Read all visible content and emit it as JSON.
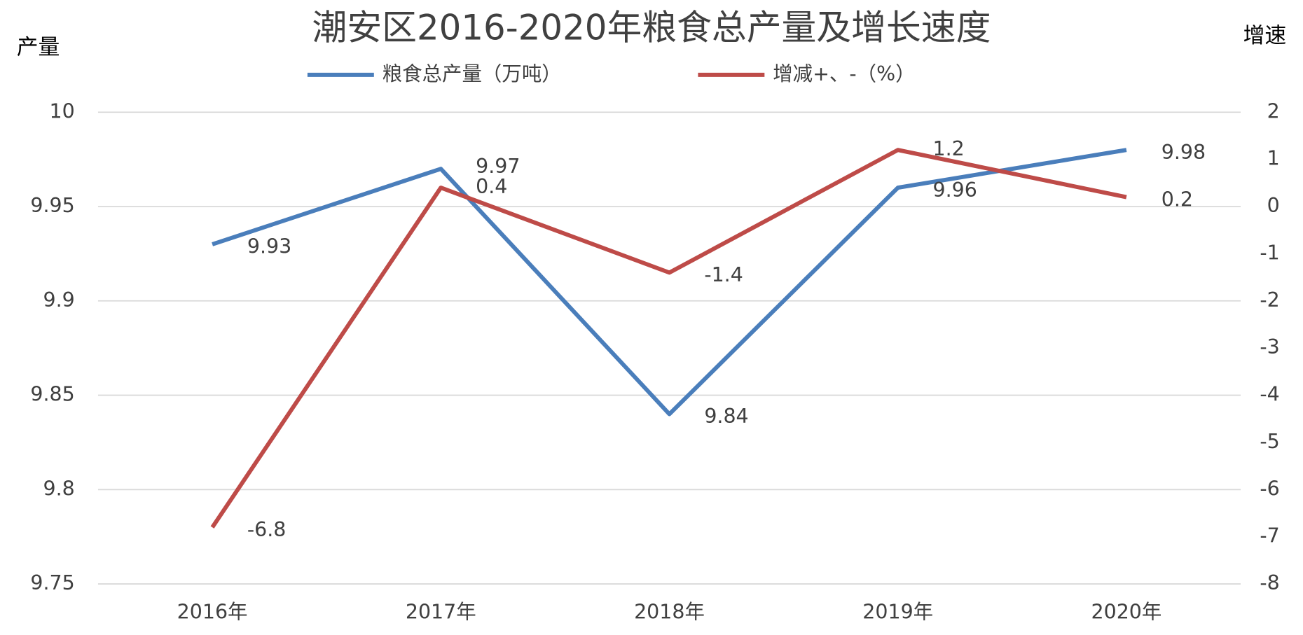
{
  "chart_data": {
    "type": "line",
    "title": "潮安区2016-2020年粮食总产量及增长速度",
    "y_label": "产量",
    "y2_label": "增速",
    "categories": [
      "2016年",
      "2017年",
      "2018年",
      "2019年",
      "2020年"
    ],
    "series": [
      {
        "name": "粮食总产量（万吨）",
        "color": "#4a7ebb",
        "values": [
          9.93,
          9.97,
          9.84,
          9.96,
          9.98
        ]
      },
      {
        "name": "增减+、-（%）",
        "color": "#be4b48",
        "axis": "y2",
        "values": [
          -6.8,
          0.4,
          -1.4,
          1.2,
          0.2
        ]
      }
    ],
    "ylim": [
      9.75,
      10
    ],
    "yticks": [
      10,
      9.95,
      9.9,
      9.85,
      9.8,
      9.75
    ],
    "y2lim": [
      -8,
      2
    ],
    "y2ticks": [
      2,
      1,
      0,
      -1,
      -2,
      -3,
      -4,
      -5,
      -6,
      -7,
      -8
    ],
    "grid": true,
    "legend": "top"
  }
}
